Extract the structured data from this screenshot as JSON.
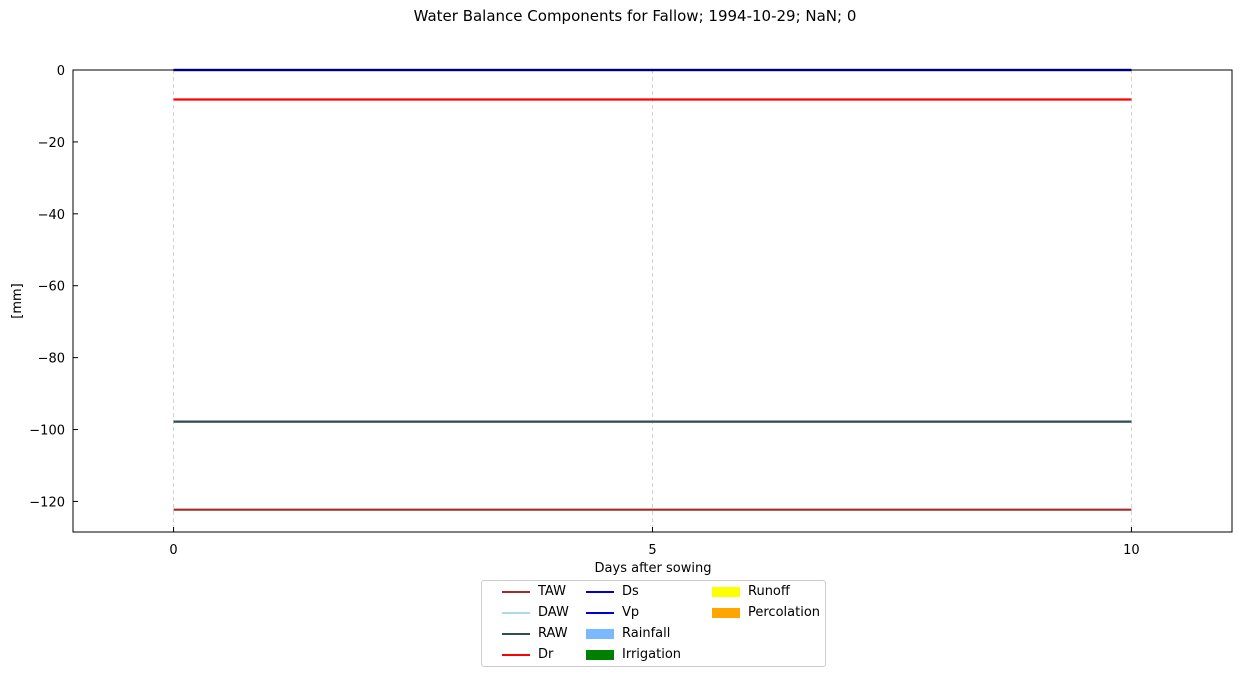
{
  "chart_data": {
    "type": "line",
    "title": "Water Balance Components for Fallow; 1994-10-29; NaN; 0",
    "xlabel": "Days after sowing",
    "ylabel": "[mm]",
    "xlim": [
      -1.05,
      11.05
    ],
    "ylim": [
      -128.5,
      0
    ],
    "xticks": [
      0,
      5,
      10
    ],
    "yticks": [
      0,
      -20,
      -40,
      -60,
      -80,
      -100,
      -120
    ],
    "ytick_labels": [
      "0",
      "−20",
      "−40",
      "−60",
      "−80",
      "−100",
      "−120"
    ],
    "grid": "x-dashed",
    "legend_position": "below",
    "x": [
      0,
      10
    ],
    "series": [
      {
        "name": "TAW",
        "kind": "line",
        "color": "#a52a2a",
        "values": [
          -122.3,
          -122.3
        ]
      },
      {
        "name": "DAW",
        "kind": "line",
        "color": "#add8e6",
        "values": [
          -97.8,
          -97.8
        ]
      },
      {
        "name": "RAW",
        "kind": "line",
        "color": "#2f4f4f",
        "values": [
          -97.8,
          -97.8
        ]
      },
      {
        "name": "Dr",
        "kind": "line",
        "color": "#ff0000",
        "values": [
          -8.2,
          -8.2
        ]
      },
      {
        "name": "Ds",
        "kind": "line",
        "color": "#0000cd",
        "values": [
          0,
          0
        ]
      },
      {
        "name": "Vp",
        "kind": "line",
        "color": "#0000cd",
        "values": [
          0,
          0
        ]
      },
      {
        "name": "Rainfall",
        "kind": "bar",
        "color": "#7ab8ff",
        "values": [
          0,
          0
        ]
      },
      {
        "name": "Irrigation",
        "kind": "bar",
        "color": "#008000",
        "values": [
          0,
          0
        ]
      },
      {
        "name": "Runoff",
        "kind": "bar",
        "color": "#ffff00",
        "values": [
          0,
          0
        ]
      },
      {
        "name": "Percolation",
        "kind": "bar",
        "color": "#ffa500",
        "values": [
          0,
          0
        ]
      }
    ]
  }
}
